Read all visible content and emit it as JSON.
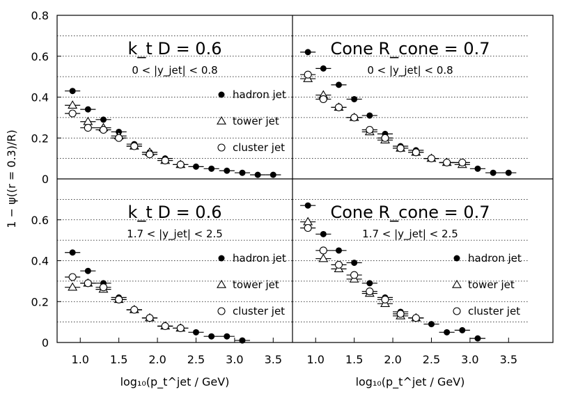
{
  "chart_data": {
    "type": "scatter",
    "ylabel": "1 − ψ((r = 0.3)/R)",
    "xlabel": "log₁₀(p_t^jet / GeV)",
    "xlim": [
      0.7,
      3.75
    ],
    "ylim": [
      0,
      0.8
    ],
    "xticks": [
      "1.0",
      "1.5",
      "2.0",
      "2.5",
      "3.0",
      "3.5"
    ],
    "yticks": [
      "0",
      "0.2",
      "0.4",
      "0.6",
      "0.8"
    ],
    "legend": [
      "hadron jet",
      "tower jet",
      "cluster jet"
    ],
    "panels": [
      {
        "id": "top-left",
        "title": "k_t D = 0.6",
        "range": "0 < |y_jet| < 0.8",
        "show_legend": true,
        "series": [
          {
            "name": "hadron jet",
            "marker": "filled-circle",
            "points": [
              [
                0.9,
                0.43
              ],
              [
                1.1,
                0.34
              ],
              [
                1.3,
                0.29
              ],
              [
                1.5,
                0.23
              ],
              [
                1.7,
                0.17
              ],
              [
                1.9,
                0.13
              ],
              [
                2.1,
                0.1
              ],
              [
                2.3,
                0.07
              ],
              [
                2.5,
                0.06
              ],
              [
                2.7,
                0.05
              ],
              [
                2.9,
                0.04
              ],
              [
                3.1,
                0.03
              ],
              [
                3.3,
                0.02
              ],
              [
                3.5,
                0.02
              ]
            ]
          },
          {
            "name": "tower jet",
            "marker": "open-triangle",
            "points": [
              [
                0.9,
                0.36
              ],
              [
                1.1,
                0.28
              ],
              [
                1.3,
                0.25
              ],
              [
                1.5,
                0.21
              ],
              [
                1.7,
                0.16
              ],
              [
                1.9,
                0.13
              ],
              [
                2.1,
                0.09
              ],
              [
                2.3,
                0.07
              ]
            ]
          },
          {
            "name": "cluster jet",
            "marker": "open-circle",
            "points": [
              [
                0.9,
                0.32
              ],
              [
                1.1,
                0.25
              ],
              [
                1.3,
                0.24
              ],
              [
                1.5,
                0.2
              ],
              [
                1.7,
                0.16
              ],
              [
                1.9,
                0.12
              ],
              [
                2.1,
                0.09
              ],
              [
                2.3,
                0.07
              ]
            ]
          }
        ]
      },
      {
        "id": "top-right",
        "title": "Cone R_cone = 0.7",
        "range": "0 < |y_jet| < 0.8",
        "show_legend": false,
        "series": [
          {
            "name": "hadron jet",
            "marker": "filled-circle",
            "points": [
              [
                0.9,
                0.62
              ],
              [
                1.1,
                0.54
              ],
              [
                1.3,
                0.46
              ],
              [
                1.5,
                0.39
              ],
              [
                1.7,
                0.31
              ],
              [
                1.9,
                0.22
              ],
              [
                2.1,
                0.16
              ],
              [
                2.3,
                0.14
              ],
              [
                2.5,
                0.1
              ],
              [
                2.7,
                0.08
              ],
              [
                2.9,
                0.08
              ],
              [
                3.1,
                0.05
              ],
              [
                3.3,
                0.03
              ],
              [
                3.5,
                0.03
              ]
            ]
          },
          {
            "name": "tower jet",
            "marker": "open-triangle",
            "points": [
              [
                0.9,
                0.49
              ],
              [
                1.1,
                0.41
              ],
              [
                1.3,
                0.35
              ],
              [
                1.5,
                0.3
              ],
              [
                1.7,
                0.23
              ],
              [
                1.9,
                0.19
              ],
              [
                2.1,
                0.15
              ],
              [
                2.3,
                0.13
              ],
              [
                2.5,
                0.1
              ],
              [
                2.7,
                0.08
              ],
              [
                2.9,
                0.07
              ]
            ]
          },
          {
            "name": "cluster jet",
            "marker": "open-circle",
            "points": [
              [
                0.9,
                0.51
              ],
              [
                1.1,
                0.39
              ],
              [
                1.3,
                0.35
              ],
              [
                1.5,
                0.3
              ],
              [
                1.7,
                0.24
              ],
              [
                1.9,
                0.2
              ],
              [
                2.1,
                0.15
              ],
              [
                2.3,
                0.13
              ],
              [
                2.5,
                0.1
              ],
              [
                2.7,
                0.08
              ],
              [
                2.9,
                0.08
              ]
            ]
          }
        ]
      },
      {
        "id": "bottom-left",
        "title": "k_t D = 0.6",
        "range": "1.7 < |y_jet| < 2.5",
        "show_legend": true,
        "series": [
          {
            "name": "hadron jet",
            "marker": "filled-circle",
            "points": [
              [
                0.9,
                0.44
              ],
              [
                1.1,
                0.35
              ],
              [
                1.3,
                0.29
              ],
              [
                1.5,
                0.22
              ],
              [
                1.7,
                0.16
              ],
              [
                1.9,
                0.12
              ],
              [
                2.1,
                0.08
              ],
              [
                2.3,
                0.07
              ],
              [
                2.5,
                0.05
              ],
              [
                2.7,
                0.03
              ],
              [
                2.9,
                0.03
              ],
              [
                3.1,
                0.01
              ]
            ]
          },
          {
            "name": "tower jet",
            "marker": "open-triangle",
            "points": [
              [
                0.9,
                0.27
              ],
              [
                1.1,
                0.29
              ],
              [
                1.3,
                0.26
              ],
              [
                1.5,
                0.21
              ],
              [
                1.7,
                0.16
              ],
              [
                1.9,
                0.12
              ],
              [
                2.1,
                0.08
              ],
              [
                2.3,
                0.07
              ]
            ]
          },
          {
            "name": "cluster jet",
            "marker": "open-circle",
            "points": [
              [
                0.9,
                0.32
              ],
              [
                1.1,
                0.29
              ],
              [
                1.3,
                0.27
              ],
              [
                1.5,
                0.21
              ],
              [
                1.7,
                0.16
              ],
              [
                1.9,
                0.12
              ],
              [
                2.1,
                0.08
              ],
              [
                2.3,
                0.07
              ]
            ]
          }
        ]
      },
      {
        "id": "bottom-right",
        "title": "Cone R_cone = 0.7",
        "range": "1.7 < |y_jet| < 2.5",
        "show_legend": true,
        "series": [
          {
            "name": "hadron jet",
            "marker": "filled-circle",
            "points": [
              [
                0.9,
                0.67
              ],
              [
                1.1,
                0.53
              ],
              [
                1.3,
                0.45
              ],
              [
                1.5,
                0.39
              ],
              [
                1.7,
                0.29
              ],
              [
                1.9,
                0.22
              ],
              [
                2.1,
                0.15
              ],
              [
                2.3,
                0.12
              ],
              [
                2.5,
                0.09
              ],
              [
                2.7,
                0.05
              ],
              [
                2.9,
                0.06
              ],
              [
                3.1,
                0.02
              ]
            ]
          },
          {
            "name": "tower jet",
            "marker": "open-triangle",
            "points": [
              [
                0.9,
                0.59
              ],
              [
                1.1,
                0.41
              ],
              [
                1.3,
                0.36
              ],
              [
                1.5,
                0.31
              ],
              [
                1.7,
                0.24
              ],
              [
                1.9,
                0.19
              ],
              [
                2.1,
                0.13
              ],
              [
                2.3,
                0.12
              ]
            ]
          },
          {
            "name": "cluster jet",
            "marker": "open-circle",
            "points": [
              [
                0.9,
                0.56
              ],
              [
                1.1,
                0.45
              ],
              [
                1.3,
                0.38
              ],
              [
                1.5,
                0.33
              ],
              [
                1.7,
                0.25
              ],
              [
                1.9,
                0.21
              ],
              [
                2.1,
                0.14
              ],
              [
                2.3,
                0.12
              ]
            ]
          }
        ]
      }
    ]
  }
}
